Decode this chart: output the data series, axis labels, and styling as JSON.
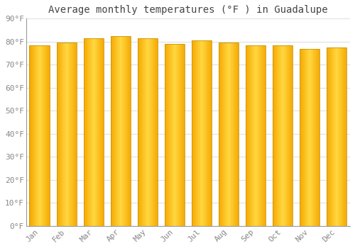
{
  "title": "Average monthly temperatures (°F ) in Guadalupe",
  "months": [
    "Jan",
    "Feb",
    "Mar",
    "Apr",
    "May",
    "Jun",
    "Jul",
    "Aug",
    "Sep",
    "Oct",
    "Nov",
    "Dec"
  ],
  "values": [
    78.5,
    79.5,
    81.5,
    82.5,
    81.5,
    79.0,
    80.5,
    79.5,
    78.5,
    78.5,
    77.0,
    77.5
  ],
  "bar_color_center": "#FFD740",
  "bar_color_edge": "#F5A800",
  "bar_edge_color": "#C8960A",
  "background_color": "#ffffff",
  "grid_color": "#e0e0e0",
  "ylim": [
    0,
    90
  ],
  "ytick_step": 10,
  "title_fontsize": 10,
  "tick_fontsize": 8,
  "tick_font_color": "#888888",
  "title_color": "#444444"
}
